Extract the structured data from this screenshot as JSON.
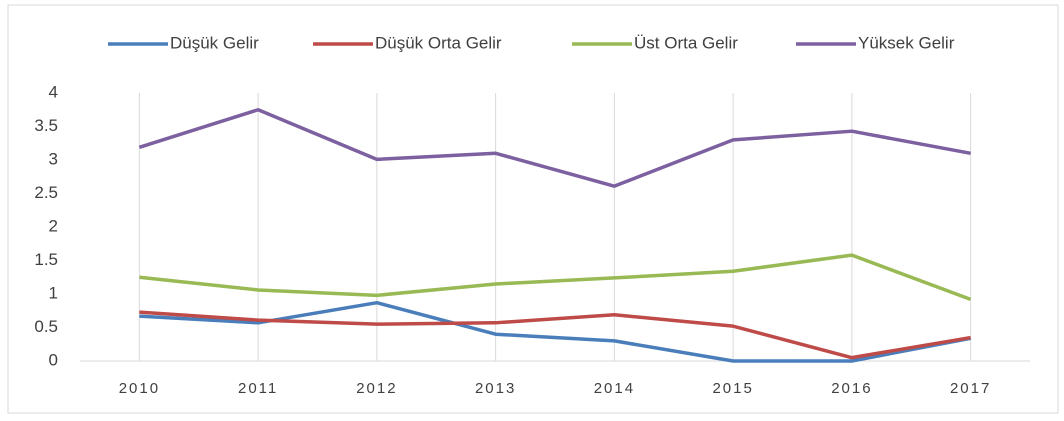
{
  "chart_data": {
    "type": "line",
    "categories": [
      "2010",
      "2011",
      "2012",
      "2013",
      "2014",
      "2015",
      "2016",
      "2017"
    ],
    "series": [
      {
        "name": "Düşük Gelir",
        "color": "#4a7ebb",
        "values": [
          0.67,
          0.57,
          0.87,
          0.4,
          0.3,
          0,
          0,
          0.34
        ]
      },
      {
        "name": "Düşük Orta Gelir",
        "color": "#be4b48",
        "values": [
          0.73,
          0.61,
          0.55,
          0.57,
          0.69,
          0.52,
          0.05,
          0.35
        ]
      },
      {
        "name": "Üst Orta Gelir",
        "color": "#98b954",
        "values": [
          1.25,
          1.06,
          0.98,
          1.15,
          1.24,
          1.34,
          1.58,
          0.92
        ]
      },
      {
        "name": "Yüksek Gelir",
        "color": "#7d60a0",
        "values": [
          3.19,
          3.75,
          3.01,
          3.1,
          2.61,
          3.3,
          3.43,
          3.1
        ]
      }
    ],
    "ylim": [
      0,
      4
    ],
    "yticks": [
      0,
      0.5,
      1,
      1.5,
      2,
      2.5,
      3,
      3.5,
      4
    ],
    "xgrid": true,
    "legend": "top"
  }
}
